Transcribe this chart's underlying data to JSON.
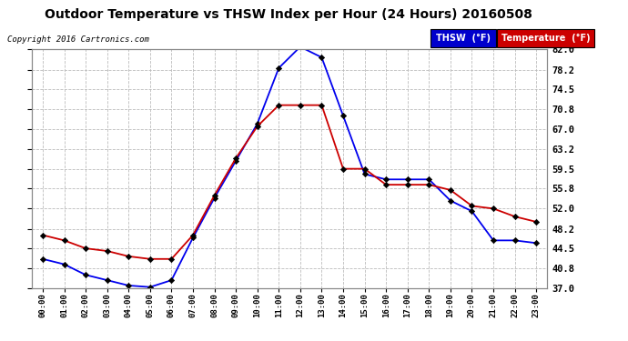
{
  "title": "Outdoor Temperature vs THSW Index per Hour (24 Hours) 20160508",
  "copyright": "Copyright 2016 Cartronics.com",
  "background_color": "#ffffff",
  "plot_background": "#ffffff",
  "grid_color": "#bbbbbb",
  "hours": [
    "00:00",
    "01:00",
    "02:00",
    "03:00",
    "04:00",
    "05:00",
    "06:00",
    "07:00",
    "08:00",
    "09:00",
    "10:00",
    "11:00",
    "12:00",
    "13:00",
    "14:00",
    "15:00",
    "16:00",
    "17:00",
    "18:00",
    "19:00",
    "20:00",
    "21:00",
    "22:00",
    "23:00"
  ],
  "thsw": [
    42.5,
    41.5,
    39.5,
    38.5,
    37.5,
    37.2,
    38.5,
    46.5,
    54.0,
    61.0,
    68.0,
    78.5,
    82.5,
    80.5,
    69.5,
    58.5,
    57.5,
    57.5,
    57.5,
    53.5,
    51.5,
    46.0,
    46.0,
    45.5
  ],
  "temperature": [
    47.0,
    46.0,
    44.5,
    44.0,
    43.0,
    42.5,
    42.5,
    47.0,
    54.5,
    61.5,
    67.5,
    71.5,
    71.5,
    71.5,
    59.5,
    59.5,
    56.5,
    56.5,
    56.5,
    55.5,
    52.5,
    52.0,
    50.5,
    49.5
  ],
  "thsw_color": "#0000ee",
  "temp_color": "#cc0000",
  "ymin": 37.0,
  "ymax": 82.0,
  "yticks": [
    37.0,
    40.8,
    44.5,
    48.2,
    52.0,
    55.8,
    59.5,
    63.2,
    67.0,
    70.8,
    74.5,
    78.2,
    82.0
  ],
  "ytick_labels": [
    "37.0",
    "40.8",
    "44.5",
    "48.2",
    "52.0",
    "55.8",
    "59.5",
    "63.2",
    "67.0",
    "70.8",
    "74.5",
    "78.2",
    "82.0"
  ],
  "legend_thsw_bg": "#0000cc",
  "legend_temp_bg": "#cc0000",
  "legend_thsw_text": "THSW  (°F)",
  "legend_temp_text": "Temperature  (°F)"
}
